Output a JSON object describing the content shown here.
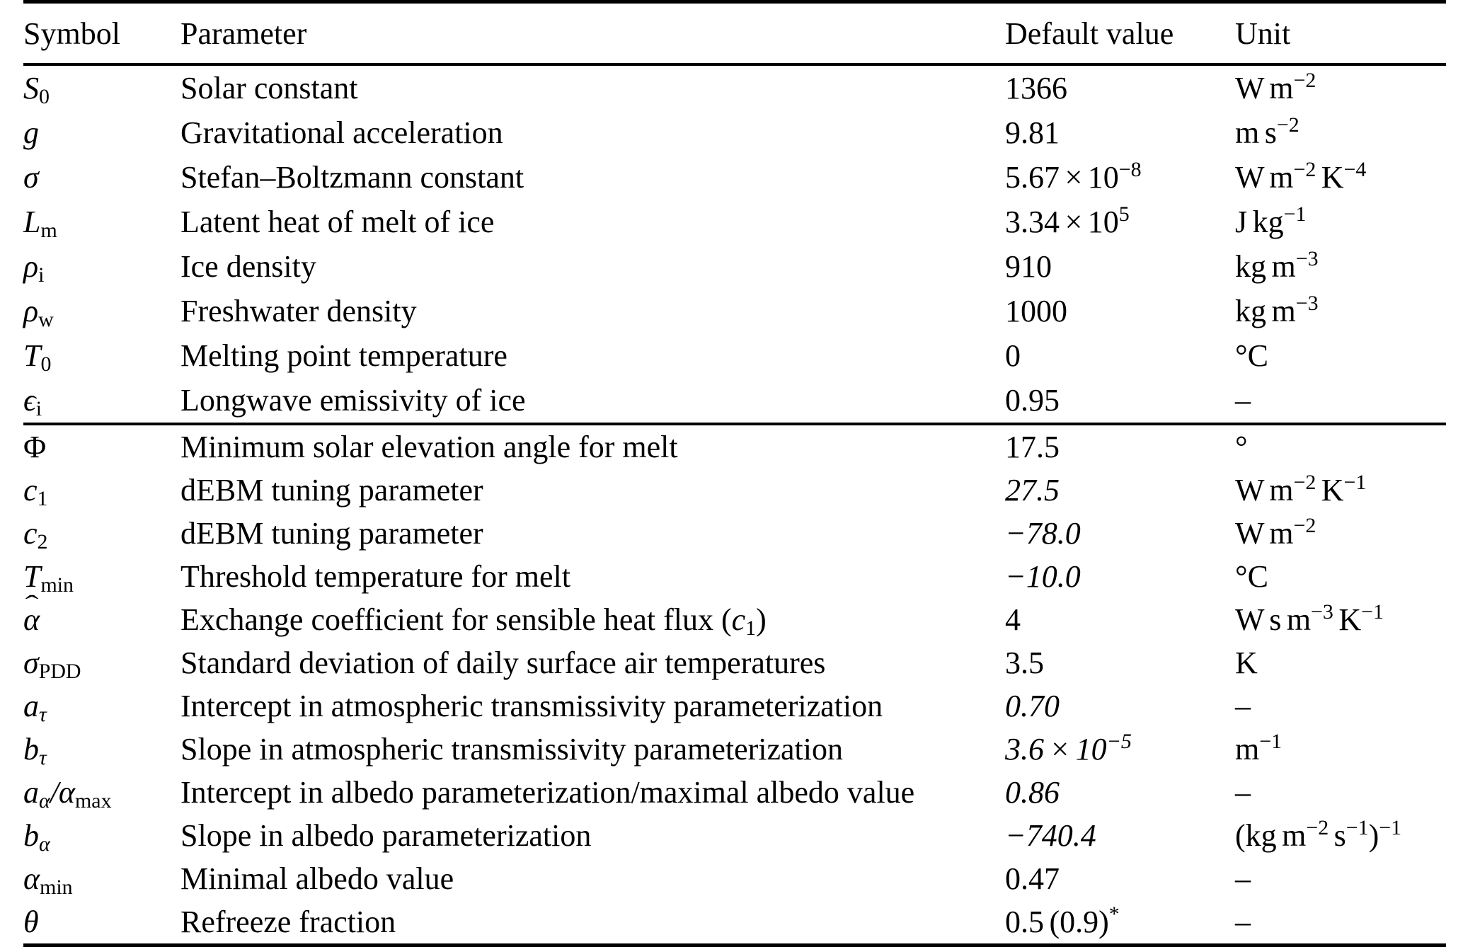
{
  "table": {
    "columns": [
      "Symbol",
      "Parameter",
      "Default value",
      "Unit"
    ],
    "sections": [
      {
        "name": "physical-constants",
        "rows": [
          {
            "symbol": "S_{0}",
            "symbol_italic": true,
            "parameter": "Solar constant",
            "value": "1366",
            "value_italic": false,
            "unit": "W m^{−2}"
          },
          {
            "symbol": "g",
            "symbol_italic": true,
            "parameter": "Gravitational acceleration",
            "value": "9.81",
            "value_italic": false,
            "unit": "m s^{−2}"
          },
          {
            "symbol": "σ",
            "symbol_italic": true,
            "parameter": "Stefan–Boltzmann constant",
            "value": "5.67 × 10^{−8}",
            "value_italic": false,
            "unit": "W m^{−2} K^{−4}"
          },
          {
            "symbol": "L_{m}",
            "symbol_italic": true,
            "parameter": "Latent heat of melt of ice",
            "value": "3.34 × 10^{5}",
            "value_italic": false,
            "unit": "J kg^{−1}"
          },
          {
            "symbol": "ρ_{i}",
            "symbol_italic": true,
            "parameter": "Ice density",
            "value": "910",
            "value_italic": false,
            "unit": "kg m^{−3}"
          },
          {
            "symbol": "ρ_{w}",
            "symbol_italic": true,
            "parameter": "Freshwater density",
            "value": "1000",
            "value_italic": false,
            "unit": "kg m^{−3}"
          },
          {
            "symbol": "T_{0}",
            "symbol_italic": true,
            "parameter": "Melting point temperature",
            "value": "0",
            "value_italic": false,
            "unit": "°C"
          },
          {
            "symbol": "ϵ_{i}",
            "symbol_italic": true,
            "parameter": "Longwave emissivity of ice",
            "value": "0.95",
            "value_italic": false,
            "unit": "–"
          }
        ]
      },
      {
        "name": "model-parameters",
        "rows": [
          {
            "symbol": "Φ",
            "symbol_italic": false,
            "parameter": "Minimum solar elevation angle for melt",
            "value": "17.5",
            "value_italic": false,
            "unit": "°"
          },
          {
            "symbol": "c_{1}",
            "symbol_italic": true,
            "parameter": "dEBM tuning parameter",
            "value": "27.5",
            "value_italic": true,
            "unit": "W m^{−2} K^{−1}"
          },
          {
            "symbol": "c_{2}",
            "symbol_italic": true,
            "parameter": "dEBM tuning parameter",
            "value": "−78.0",
            "value_italic": true,
            "unit": "W m^{−2}"
          },
          {
            "symbol": "T_{min}",
            "symbol_italic": true,
            "parameter": "Threshold temperature for melt",
            "value": "−10.0",
            "value_italic": true,
            "unit": "°C"
          },
          {
            "symbol": "hat{α}",
            "symbol_italic": true,
            "parameter": "Exchange coefficient for sensible heat flux (i{c}_{1})",
            "value": "4",
            "value_italic": false,
            "unit": "W s m^{−3} K^{−1}"
          },
          {
            "symbol": "σ_{PDD}",
            "symbol_italic": true,
            "parameter": "Standard deviation of daily surface air temperatures",
            "value": "3.5",
            "value_italic": false,
            "unit": "K"
          },
          {
            "symbol": "a_{τ}",
            "symbol_italic": true,
            "parameter": "Intercept in atmospheric transmissivity parameterization",
            "value": "0.70",
            "value_italic": true,
            "unit": "–"
          },
          {
            "symbol": "b_{τ}",
            "symbol_italic": true,
            "parameter": "Slope in atmospheric transmissivity parameterization",
            "value": "3.6 × 10^{−5}",
            "value_italic": true,
            "unit": "m^{−1}"
          },
          {
            "symbol": "a_{α}/α_{max}",
            "symbol_italic": true,
            "parameter": "Intercept in albedo parameterization/maximal albedo value",
            "value": "0.86",
            "value_italic": true,
            "unit": "–"
          },
          {
            "symbol": "b_{α}",
            "symbol_italic": true,
            "parameter": "Slope in albedo parameterization",
            "value": "−740.4",
            "value_italic": true,
            "unit": "(kg m^{−2} s^{−1})^{−1}"
          },
          {
            "symbol": "α_{min}",
            "symbol_italic": true,
            "parameter": "Minimal albedo value",
            "value": "0.47",
            "value_italic": false,
            "unit": "–"
          },
          {
            "symbol": "θ",
            "symbol_italic": true,
            "parameter": "Refreeze fraction",
            "value": "0.5 (0.9)^{*}",
            "value_italic": false,
            "unit": "–"
          }
        ]
      }
    ]
  }
}
